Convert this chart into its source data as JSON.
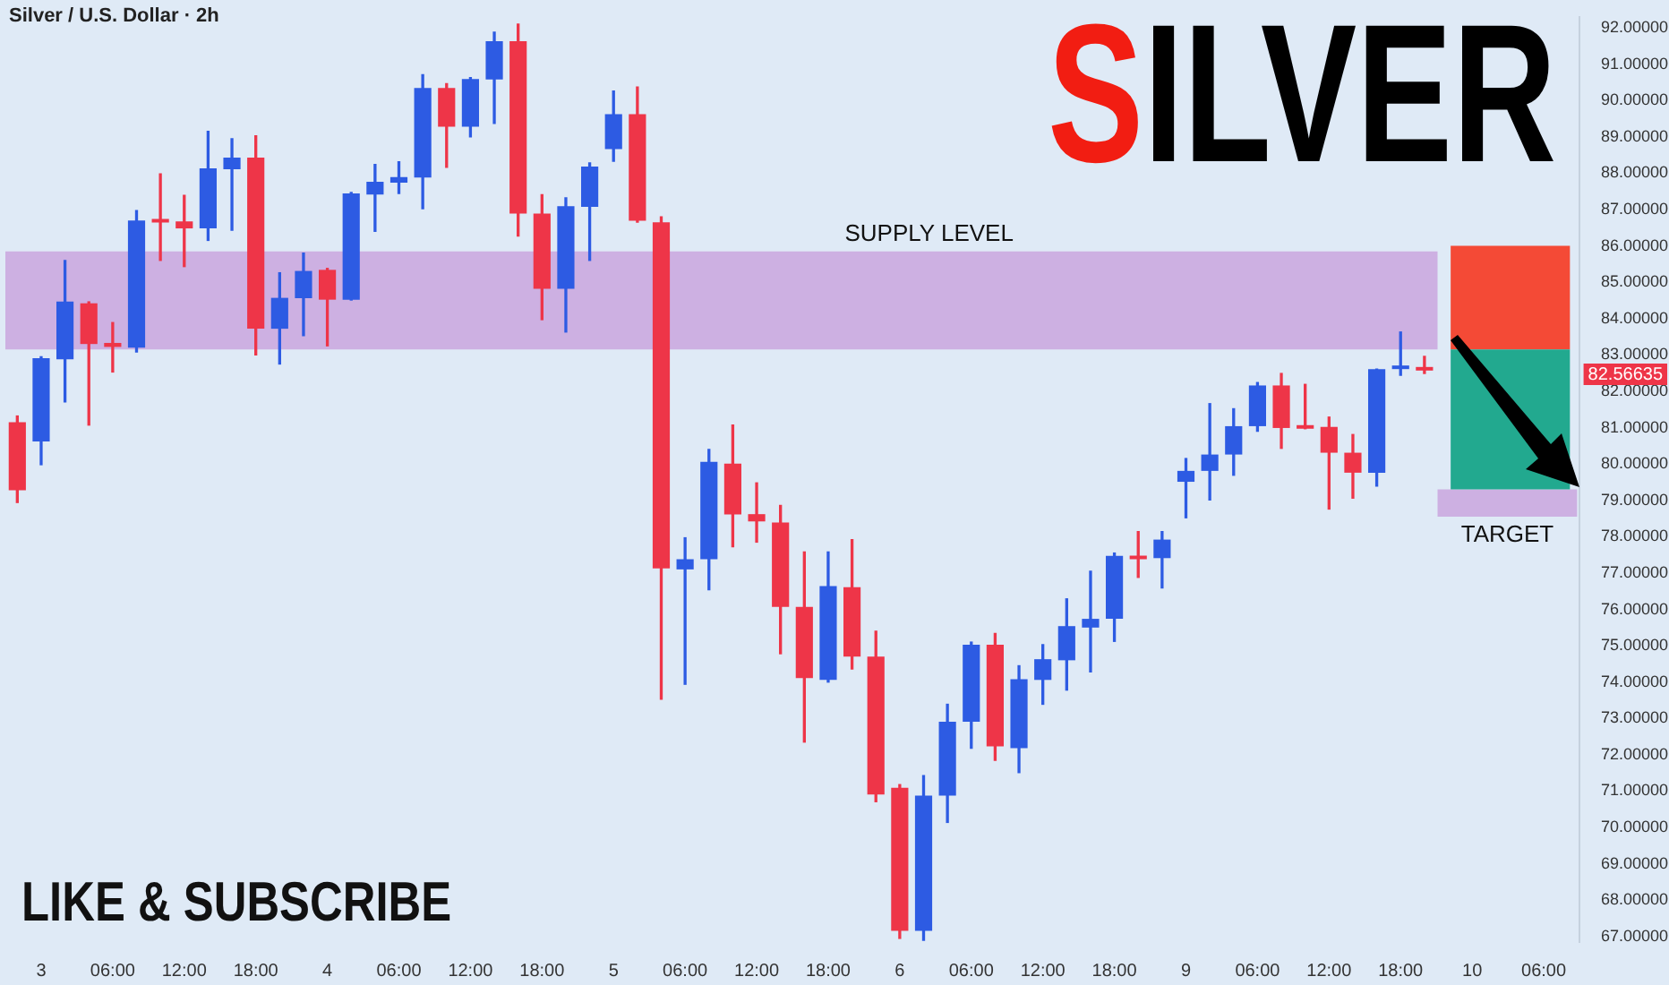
{
  "chart_data": {
    "type": "candlestick",
    "title": "SILVER",
    "subtitle": "Silver / U.S. Dollar · 2h",
    "categories": [
      null,
      "3",
      null,
      null,
      "06:00",
      null,
      null,
      "12:00",
      null,
      null,
      "18:00",
      null,
      null,
      "4",
      null,
      null,
      "06:00",
      null,
      null,
      "12:00",
      null,
      null,
      "18:00",
      null,
      null,
      "5",
      null,
      null,
      "06:00",
      null,
      null,
      "12:00",
      null,
      null,
      "18:00",
      null,
      null,
      "6",
      null,
      null,
      "06:00",
      null,
      null,
      "12:00",
      null,
      null,
      "18:00",
      null,
      null,
      "9",
      null,
      null,
      "06:00",
      null,
      null,
      "12:00",
      null,
      null,
      "18:00",
      null,
      null,
      "10",
      null,
      null,
      "06:00",
      null
    ],
    "ohlc": [
      [
        81.15,
        81.32,
        78.94,
        79.28
      ],
      [
        80.62,
        82.95,
        79.98,
        82.91
      ],
      [
        82.88,
        85.6,
        81.71,
        84.47
      ],
      [
        84.42,
        84.46,
        81.07,
        83.3
      ],
      [
        83.33,
        83.89,
        82.53,
        83.22
      ],
      [
        83.2,
        86.97,
        83.08,
        86.7
      ],
      [
        86.72,
        87.98,
        85.6,
        86.64
      ],
      [
        86.67,
        87.39,
        85.43,
        86.48
      ],
      [
        86.48,
        89.15,
        86.15,
        88.13
      ],
      [
        88.11,
        88.95,
        86.43,
        88.43
      ],
      [
        88.43,
        89.03,
        83.0,
        83.72
      ],
      [
        83.72,
        85.26,
        82.75,
        84.57
      ],
      [
        84.56,
        85.8,
        83.53,
        85.31
      ],
      [
        85.34,
        85.38,
        83.25,
        84.52
      ],
      [
        84.52,
        87.47,
        84.51,
        87.44
      ],
      [
        87.41,
        88.24,
        86.4,
        87.76
      ],
      [
        87.74,
        88.31,
        87.44,
        87.89
      ],
      [
        87.88,
        90.71,
        87.02,
        90.34
      ],
      [
        90.34,
        90.46,
        88.16,
        89.28
      ],
      [
        89.28,
        90.63,
        89.0,
        90.59
      ],
      [
        90.58,
        91.88,
        89.37,
        91.63
      ],
      [
        91.63,
        92.1,
        86.27,
        86.89
      ],
      [
        86.89,
        87.41,
        83.97,
        84.82
      ],
      [
        84.82,
        87.32,
        83.63,
        87.09
      ],
      [
        87.07,
        88.28,
        85.6,
        88.18
      ],
      [
        88.66,
        90.26,
        88.33,
        89.62
      ],
      [
        89.62,
        90.37,
        86.65,
        86.69
      ],
      [
        86.65,
        86.8,
        73.53,
        77.13
      ],
      [
        77.1,
        77.97,
        73.94,
        77.38
      ],
      [
        77.38,
        80.4,
        76.54,
        80.06
      ],
      [
        80.01,
        81.07,
        77.72,
        78.61
      ],
      [
        78.62,
        79.48,
        77.85,
        78.42
      ],
      [
        78.39,
        78.86,
        74.78,
        76.07
      ],
      [
        76.07,
        77.58,
        72.35,
        74.11
      ],
      [
        74.06,
        77.58,
        74.0,
        76.64
      ],
      [
        76.61,
        77.92,
        74.36,
        74.7
      ],
      [
        74.7,
        75.4,
        70.71,
        70.91
      ],
      [
        71.09,
        71.18,
        66.95,
        67.16
      ],
      [
        67.16,
        71.43,
        66.9,
        70.88
      ],
      [
        70.88,
        73.39,
        70.14,
        72.91
      ],
      [
        72.91,
        75.1,
        72.18,
        75.03
      ],
      [
        75.03,
        75.34,
        71.85,
        72.23
      ],
      [
        72.18,
        74.45,
        71.51,
        74.08
      ],
      [
        74.06,
        75.03,
        73.39,
        74.63
      ],
      [
        74.6,
        76.29,
        73.78,
        75.54
      ],
      [
        75.5,
        77.05,
        74.28,
        75.74
      ],
      [
        75.74,
        77.55,
        75.12,
        77.47
      ],
      [
        77.47,
        78.14,
        76.88,
        77.38
      ],
      [
        77.41,
        78.14,
        76.59,
        77.92
      ],
      [
        79.51,
        80.15,
        78.52,
        79.81
      ],
      [
        79.81,
        81.66,
        79.01,
        80.26
      ],
      [
        80.26,
        81.52,
        79.69,
        81.04
      ],
      [
        81.04,
        82.24,
        80.9,
        82.16
      ],
      [
        82.16,
        82.49,
        80.43,
        80.99
      ],
      [
        81.02,
        82.19,
        80.97,
        80.97
      ],
      [
        81.02,
        81.29,
        78.76,
        80.31
      ],
      [
        80.31,
        80.81,
        79.06,
        79.76
      ],
      [
        79.76,
        82.61,
        79.39,
        82.61
      ],
      [
        82.61,
        83.63,
        82.44,
        82.66
      ],
      [
        82.66,
        82.96,
        82.49,
        82.57
      ],
      null,
      null,
      null,
      null,
      null,
      null
    ],
    "colors": [
      "#ee3548",
      "#2d5be3",
      "#2d5be3",
      "#ee3548",
      "#ee3548",
      "#2d5be3",
      "#ee3548",
      "#ee3548",
      "#2d5be3",
      "#2d5be3",
      "#ee3548",
      "#2d5be3",
      "#2d5be3",
      "#ee3548",
      "#2d5be3",
      "#2d5be3",
      "#2d5be3",
      "#2d5be3",
      "#ee3548",
      "#2d5be3",
      "#2d5be3",
      "#ee3548",
      "#ee3548",
      "#2d5be3",
      "#2d5be3",
      "#2d5be3",
      "#ee3548",
      "#ee3548",
      "#2d5be3",
      "#2d5be3",
      "#ee3548",
      "#ee3548",
      "#ee3548",
      "#ee3548",
      "#2d5be3",
      "#ee3548",
      "#ee3548",
      "#ee3548",
      "#2d5be3",
      "#2d5be3",
      "#2d5be3",
      "#ee3548",
      "#2d5be3",
      "#2d5be3",
      "#2d5be3",
      "#2d5be3",
      "#2d5be3",
      "#ee3548",
      "#2d5be3",
      "#2d5be3",
      "#2d5be3",
      "#2d5be3",
      "#2d5be3",
      "#ee3548",
      "#ee3548",
      "#ee3548",
      "#ee3548",
      "#2d5be3",
      "#2d5be3",
      "#ee3548",
      null,
      null,
      null,
      null,
      null,
      null
    ],
    "ylim": [
      66.85,
      92.3
    ],
    "yticks": [
      {
        "value": 67,
        "label": "67.00000"
      },
      {
        "value": 68,
        "label": "68.00000"
      },
      {
        "value": 69,
        "label": "69.00000"
      },
      {
        "value": 70,
        "label": "70.00000"
      },
      {
        "value": 71,
        "label": "71.00000"
      },
      {
        "value": 72,
        "label": "72.00000"
      },
      {
        "value": 73,
        "label": "73.00000"
      },
      {
        "value": 74,
        "label": "74.00000"
      },
      {
        "value": 75,
        "label": "75.00000"
      },
      {
        "value": 76,
        "label": "76.00000"
      },
      {
        "value": 77,
        "label": "77.00000"
      },
      {
        "value": 78,
        "label": "78.00000"
      },
      {
        "value": 79,
        "label": "79.00000"
      },
      {
        "value": 80,
        "label": "80.00000"
      },
      {
        "value": 81,
        "label": "81.00000"
      },
      {
        "value": 82,
        "label": "82.00000"
      },
      {
        "value": 83,
        "label": "83.00000"
      },
      {
        "value": 84,
        "label": "84.00000"
      },
      {
        "value": 85,
        "label": "85.00000"
      },
      {
        "value": 86,
        "label": "86.00000"
      },
      {
        "value": 87,
        "label": "87.00000"
      },
      {
        "value": 88,
        "label": "88.00000"
      },
      {
        "value": 89,
        "label": "89.00000"
      },
      {
        "value": 90,
        "label": "90.00000"
      },
      {
        "value": 91,
        "label": "91.00000"
      },
      {
        "value": 92,
        "label": "92.00000"
      }
    ],
    "bands": [
      {
        "axis": "y",
        "from": 83.15,
        "to": 85.85,
        "label": "SUPPLY LEVEL",
        "color": "#cdb0e2"
      },
      {
        "axis": "y",
        "from": 78.55,
        "to": 79.3,
        "label": "TARGET",
        "color": "#cdb0e2"
      },
      {
        "axis": "y",
        "from": 83.15,
        "to": 86.0,
        "color": "#f44a36"
      },
      {
        "axis": "y",
        "from": 79.3,
        "to": 83.15,
        "color": "#22a98f"
      }
    ],
    "annotations": [
      "LIKE & SUBSCRIBE",
      "82.56635"
    ],
    "grid": false,
    "legend": false
  }
}
